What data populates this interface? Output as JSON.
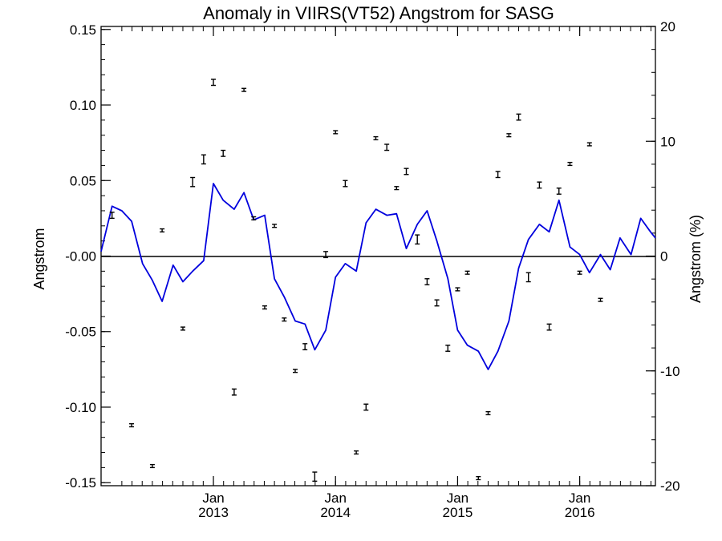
{
  "chart_data": {
    "type": "line",
    "title": "Anomaly in VIIRS(VT52) Angstrom for SASG",
    "ylabel": "Angstrom",
    "y2label": "Angstrom (%)",
    "ylim": [
      -0.152,
      0.152
    ],
    "y2lim": [
      -20,
      20
    ],
    "xlim": [
      2012.08,
      2016.62
    ],
    "yticks": [
      "0.15",
      "0.10",
      "0.05",
      "-0.00",
      "-0.05",
      "-0.10",
      "-0.15"
    ],
    "yticks_values": [
      0.15,
      0.1,
      0.05,
      0.0,
      -0.05,
      -0.1,
      -0.15
    ],
    "y2ticks": [
      "20",
      "10",
      "0",
      "-10",
      "-20"
    ],
    "y2ticks_values": [
      20,
      10,
      0,
      -10,
      -20
    ],
    "xticks": [
      {
        "month": "Jan",
        "year": "2013",
        "x": 2013.0
      },
      {
        "month": "Jan",
        "year": "2014",
        "x": 2014.0
      },
      {
        "month": "Jan",
        "year": "2015",
        "x": 2015.0
      },
      {
        "month": "Jan",
        "year": "2016",
        "x": 2016.0
      }
    ],
    "grid": false,
    "zero_line": true,
    "series": [
      {
        "type": "line",
        "axis": "right",
        "color": "#0000dd",
        "x": [
          2012.08,
          2012.17,
          2012.25,
          2012.33,
          2012.42,
          2012.5,
          2012.58,
          2012.67,
          2012.75,
          2012.83,
          2012.92,
          2013.0,
          2013.08,
          2013.17,
          2013.25,
          2013.33,
          2013.42,
          2013.5,
          2013.58,
          2013.67,
          2013.75,
          2013.83,
          2013.92,
          2014.0,
          2014.08,
          2014.17,
          2014.25,
          2014.33,
          2014.42,
          2014.5,
          2014.58,
          2014.67,
          2014.75,
          2014.83,
          2014.92,
          2015.0,
          2015.08,
          2015.17,
          2015.25,
          2015.33,
          2015.42,
          2015.5,
          2015.58,
          2015.67,
          2015.75,
          2015.83,
          2015.92,
          2016.0,
          2016.08,
          2016.17,
          2016.25,
          2016.33,
          2016.42,
          2016.5,
          2016.58,
          2016.62
        ],
        "values": [
          0.003,
          0.033,
          0.03,
          0.023,
          -0.005,
          -0.016,
          -0.03,
          -0.006,
          -0.017,
          -0.01,
          -0.003,
          0.048,
          0.037,
          0.031,
          0.042,
          0.024,
          0.027,
          -0.015,
          -0.027,
          -0.043,
          -0.045,
          -0.062,
          -0.049,
          -0.014,
          -0.005,
          -0.01,
          0.022,
          0.031,
          0.027,
          0.028,
          0.005,
          0.021,
          0.03,
          0.01,
          -0.015,
          -0.049,
          -0.059,
          -0.063,
          -0.075,
          -0.063,
          -0.043,
          -0.008,
          0.011,
          0.021,
          0.016,
          0.037,
          0.006,
          0.001,
          -0.011,
          0.001,
          -0.009,
          0.012,
          0.001,
          0.025,
          0.016,
          0.012
        ]
      },
      {
        "type": "errorbar",
        "axis": "left",
        "color": "#000000",
        "x": [
          2012.17,
          2012.33,
          2012.5,
          2012.58,
          2012.75,
          2012.83,
          2012.92,
          2013.0,
          2013.08,
          2013.17,
          2013.25,
          2013.33,
          2013.42,
          2013.5,
          2013.58,
          2013.67,
          2013.75,
          2013.83,
          2013.92,
          2014.0,
          2014.08,
          2014.17,
          2014.25,
          2014.33,
          2014.42,
          2014.5,
          2014.58,
          2014.67,
          2014.75,
          2014.83,
          2014.92,
          2015.0,
          2015.08,
          2015.17,
          2015.25,
          2015.33,
          2015.42,
          2015.5,
          2015.58,
          2015.67,
          2015.75,
          2015.83,
          2015.92,
          2016.0,
          2016.08,
          2016.17,
          2016.25,
          2016.33,
          2016.42,
          2016.5
        ],
        "values": [
          0.027,
          -0.112,
          -0.139,
          0.017,
          -0.048,
          0.049,
          0.064,
          0.115,
          0.068,
          -0.09,
          0.11,
          0.025,
          -0.034,
          0.02,
          -0.042,
          -0.076,
          -0.06,
          -0.146,
          0.001,
          0.082,
          0.048,
          -0.13,
          -0.1,
          0.078,
          0.072,
          0.045,
          0.056,
          0.011,
          -0.017,
          -0.031,
          -0.061,
          -0.022,
          -0.011,
          -0.147,
          -0.104,
          0.054,
          0.08,
          0.092,
          -0.014,
          0.047,
          -0.047,
          0.043,
          0.061,
          -0.011,
          0.074,
          -0.029,
          0.0,
          0.0,
          0.0,
          0.0
        ],
        "errors": [
          0.002,
          0.001,
          0.001,
          0.001,
          0.001,
          0.003,
          0.003,
          0.002,
          0.002,
          0.002,
          0.001,
          0.001,
          0.001,
          0.001,
          0.001,
          0.001,
          0.002,
          0.003,
          0.002,
          0.001,
          0.002,
          0.001,
          0.002,
          0.001,
          0.002,
          0.001,
          0.002,
          0.003,
          0.002,
          0.002,
          0.002,
          0.001,
          0.001,
          0.001,
          0.001,
          0.002,
          0.001,
          0.002,
          0.003,
          0.002,
          0.002,
          0.002,
          0.001,
          0.001,
          0.001,
          0.001,
          0.0,
          0.0,
          0.0,
          0.0
        ]
      }
    ]
  }
}
